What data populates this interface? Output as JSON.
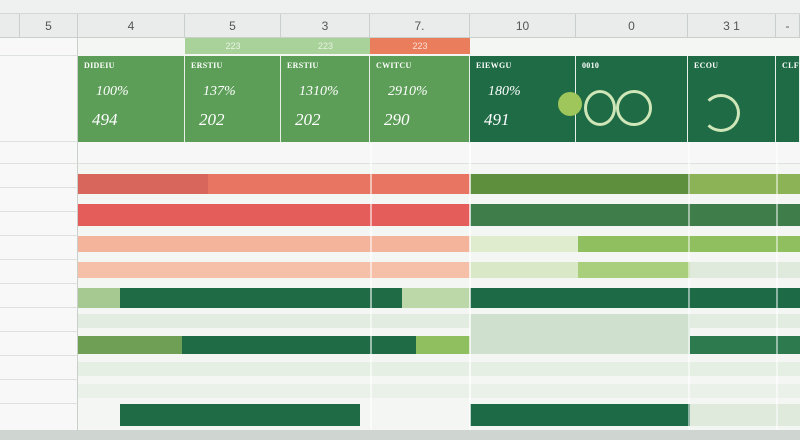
{
  "column_headers": [
    "5",
    "4",
    "5",
    "3",
    "7.",
    "10",
    "0",
    "3 1",
    "-"
  ],
  "tags": [
    "223",
    "223",
    "223"
  ],
  "cards": [
    {
      "label": "DIDEIU",
      "value1": "100%",
      "value2": "494"
    },
    {
      "label": "ERSTIU",
      "value1": "137%",
      "value2": "202"
    },
    {
      "label": "ERSTIU",
      "value1": "1310%",
      "value2": "202"
    },
    {
      "label": "CWITCU",
      "value1": "2910%",
      "value2": "290"
    },
    {
      "label": "EIEWGU",
      "value1": "180%",
      "value2": "491"
    },
    {
      "label": "0010",
      "value1": "",
      "value2": ""
    },
    {
      "label": "ECOU",
      "value1": "",
      "value2": ""
    },
    {
      "label": "CLF",
      "value1": "",
      "value2": ""
    }
  ],
  "colors": {
    "green_light": "#5c9e57",
    "green_dark": "#1f6b45",
    "red": "#d9665c",
    "salmon": "#f4b49b",
    "header_bg": "#e9ecea"
  }
}
